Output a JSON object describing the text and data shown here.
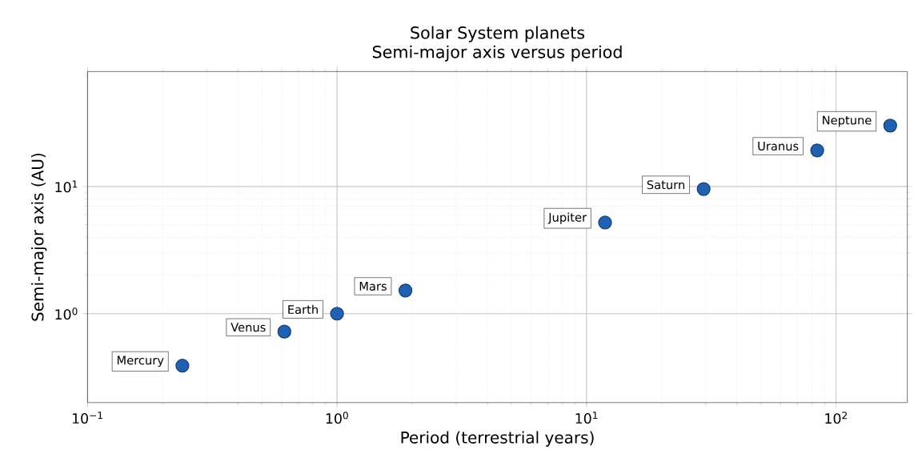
{
  "chart_data": {
    "type": "scatter",
    "title": "Solar System planets",
    "subtitle": "Semi-major axis versus period",
    "xlabel": "Period (terrestrial years)",
    "ylabel": "Semi-major axis (AU)",
    "x": [
      0.24,
      0.615,
      1,
      1.88,
      11.86,
      29.46,
      84.01,
      164.8
    ],
    "values": [
      0.39,
      0.723,
      1,
      1.52,
      5.2,
      9.54,
      19.19,
      30.07
    ],
    "color": "#1f62b4",
    "marker": "circle",
    "log": "xy",
    "grid": true,
    "xlim": [
      0.1,
      193
    ],
    "ylim": [
      0.2,
      80
    ],
    "xticks": [
      {
        "value": 0.1,
        "label": "10$^{−1}$"
      },
      {
        "value": 1,
        "label": "10$^{0}$"
      },
      {
        "value": 10,
        "label": "10$^{1}$"
      },
      {
        "value": 100,
        "label": "10$^{2}$"
      }
    ],
    "yticks": [
      {
        "value": 1,
        "label": "10$^{0}$"
      },
      {
        "value": 10,
        "label": "10$^{1}$"
      }
    ],
    "annotations": [
      {
        "text": "Mercury",
        "x": 0.24,
        "y": 0.39
      },
      {
        "text": "Venus",
        "x": 0.615,
        "y": 0.723
      },
      {
        "text": "Earth",
        "x": 1,
        "y": 1
      },
      {
        "text": "Mars",
        "x": 1.88,
        "y": 1.52
      },
      {
        "text": "Jupiter",
        "x": 11.86,
        "y": 5.2
      },
      {
        "text": "Saturn",
        "x": 29.46,
        "y": 9.54
      },
      {
        "text": "Uranus",
        "x": 84.01,
        "y": 19.19
      },
      {
        "text": "Neptune",
        "x": 164.8,
        "y": 30.07
      }
    ]
  }
}
